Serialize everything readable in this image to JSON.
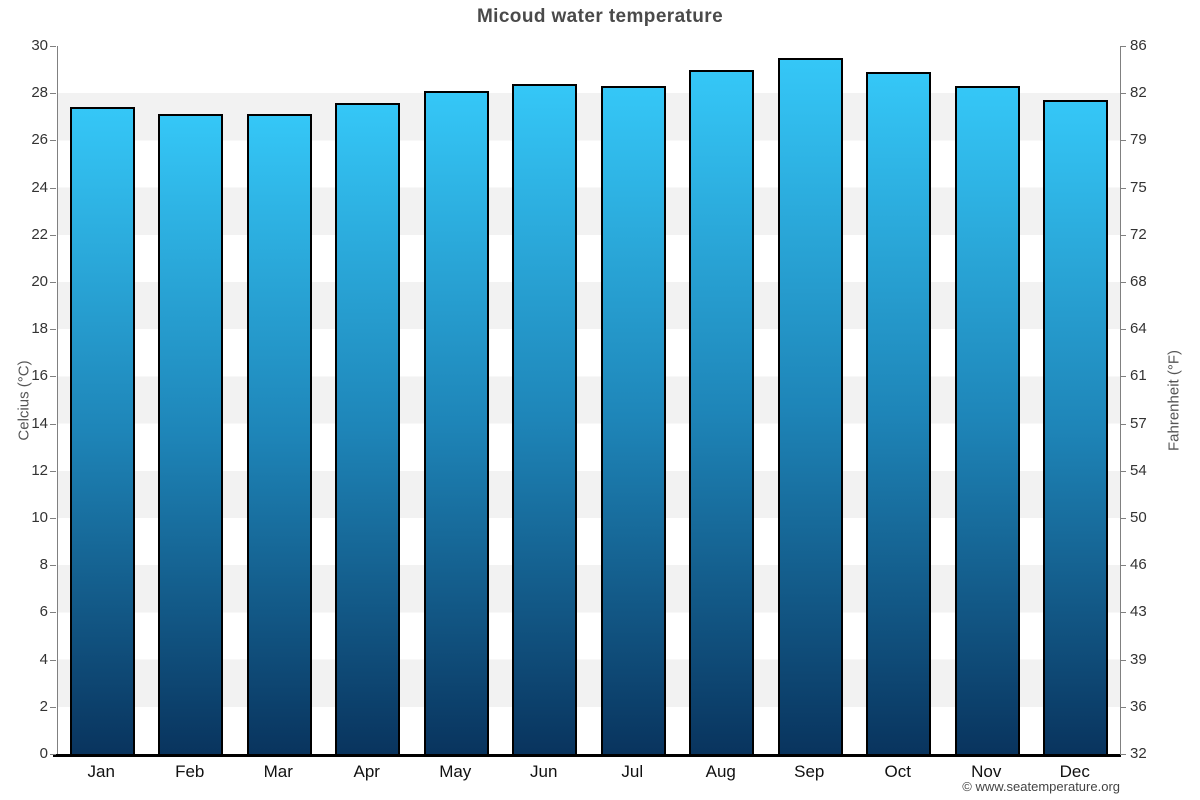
{
  "title": "Micoud water temperature",
  "footer": "© www.seatemperature.org",
  "axes": {
    "left": {
      "title": "Celcius (°C)",
      "ticks": [
        30,
        28,
        26,
        24,
        22,
        20,
        18,
        16,
        14,
        12,
        10,
        8,
        6,
        4,
        2,
        0
      ]
    },
    "right": {
      "title": "Fahrenheit (°F)",
      "ticks": [
        86,
        82,
        79,
        75,
        72,
        68,
        64,
        61,
        57,
        54,
        50,
        46,
        43,
        39,
        36,
        32
      ]
    }
  },
  "colors": {
    "bar_gradient_top": "#35c7f7",
    "bar_gradient_mid": "#1e85b8",
    "bar_gradient_bottom": "#09345e",
    "bar_border": "#000000",
    "band_gray": "#f2f2f2",
    "band_white": "#ffffff",
    "axis_line": "#808080",
    "baseline": "#000000",
    "title_text": "#4a4a4a",
    "tick_text": "#333333",
    "axis_title_text": "#555555",
    "footer_text": "#444444"
  },
  "chart_data": {
    "type": "bar",
    "title": "Micoud water temperature",
    "categories": [
      "Jan",
      "Feb",
      "Mar",
      "Apr",
      "May",
      "Jun",
      "Jul",
      "Aug",
      "Sep",
      "Oct",
      "Nov",
      "Dec"
    ],
    "values": [
      27.4,
      27.1,
      27.1,
      27.6,
      28.1,
      28.4,
      28.3,
      29.0,
      29.5,
      28.9,
      28.3,
      27.7
    ],
    "series_name": "Water temperature (°C)",
    "xlabel": "",
    "ylabel": "Celcius (°C)",
    "y2label": "Fahrenheit (°F)",
    "ylim": [
      0,
      30
    ],
    "y2lim": [
      32,
      86
    ],
    "grid": "alternating horizontal bands every 2°C",
    "legend": "none"
  }
}
